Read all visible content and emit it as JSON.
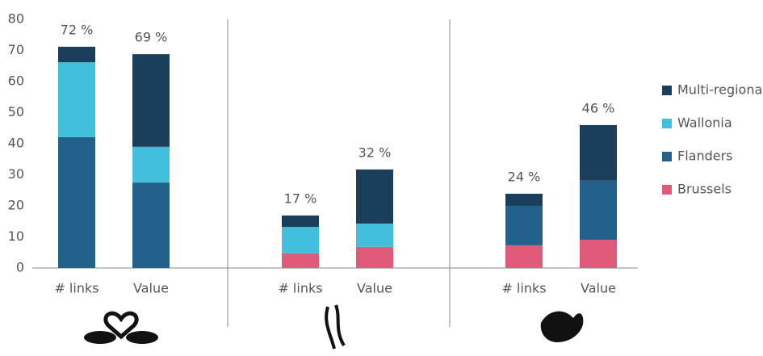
{
  "chart_data": {
    "type": "stacked_bar",
    "categories": [
      "# links",
      "Value",
      "# links",
      "Value",
      "# links",
      "Value"
    ],
    "series": [
      {
        "name": "Brussels",
        "color": "#e05a7a",
        "values": [
          0,
          0,
          4.7,
          6.8,
          7.3,
          9.1
        ]
      },
      {
        "name": "Flanders",
        "color": "#22628a",
        "values": [
          42.1,
          27.5,
          0,
          0,
          12.7,
          19.0
        ]
      },
      {
        "name": "Wallonia",
        "color": "#41bfdc",
        "values": [
          24.1,
          11.5,
          8.5,
          7.5,
          0,
          0
        ]
      },
      {
        "name": "Multi-regional",
        "color": "#1b3f5a",
        "values": [
          5.0,
          29.8,
          3.7,
          17.4,
          3.9,
          17.9
        ]
      }
    ],
    "annotations": [
      "72 %",
      "69 %",
      "17 %",
      "32 %",
      "24 %",
      "46 %"
    ],
    "ylim": [
      0,
      80
    ],
    "yticks": [
      0,
      10,
      20,
      30,
      40,
      50,
      60,
      70,
      80
    ],
    "legend": "right"
  }
}
